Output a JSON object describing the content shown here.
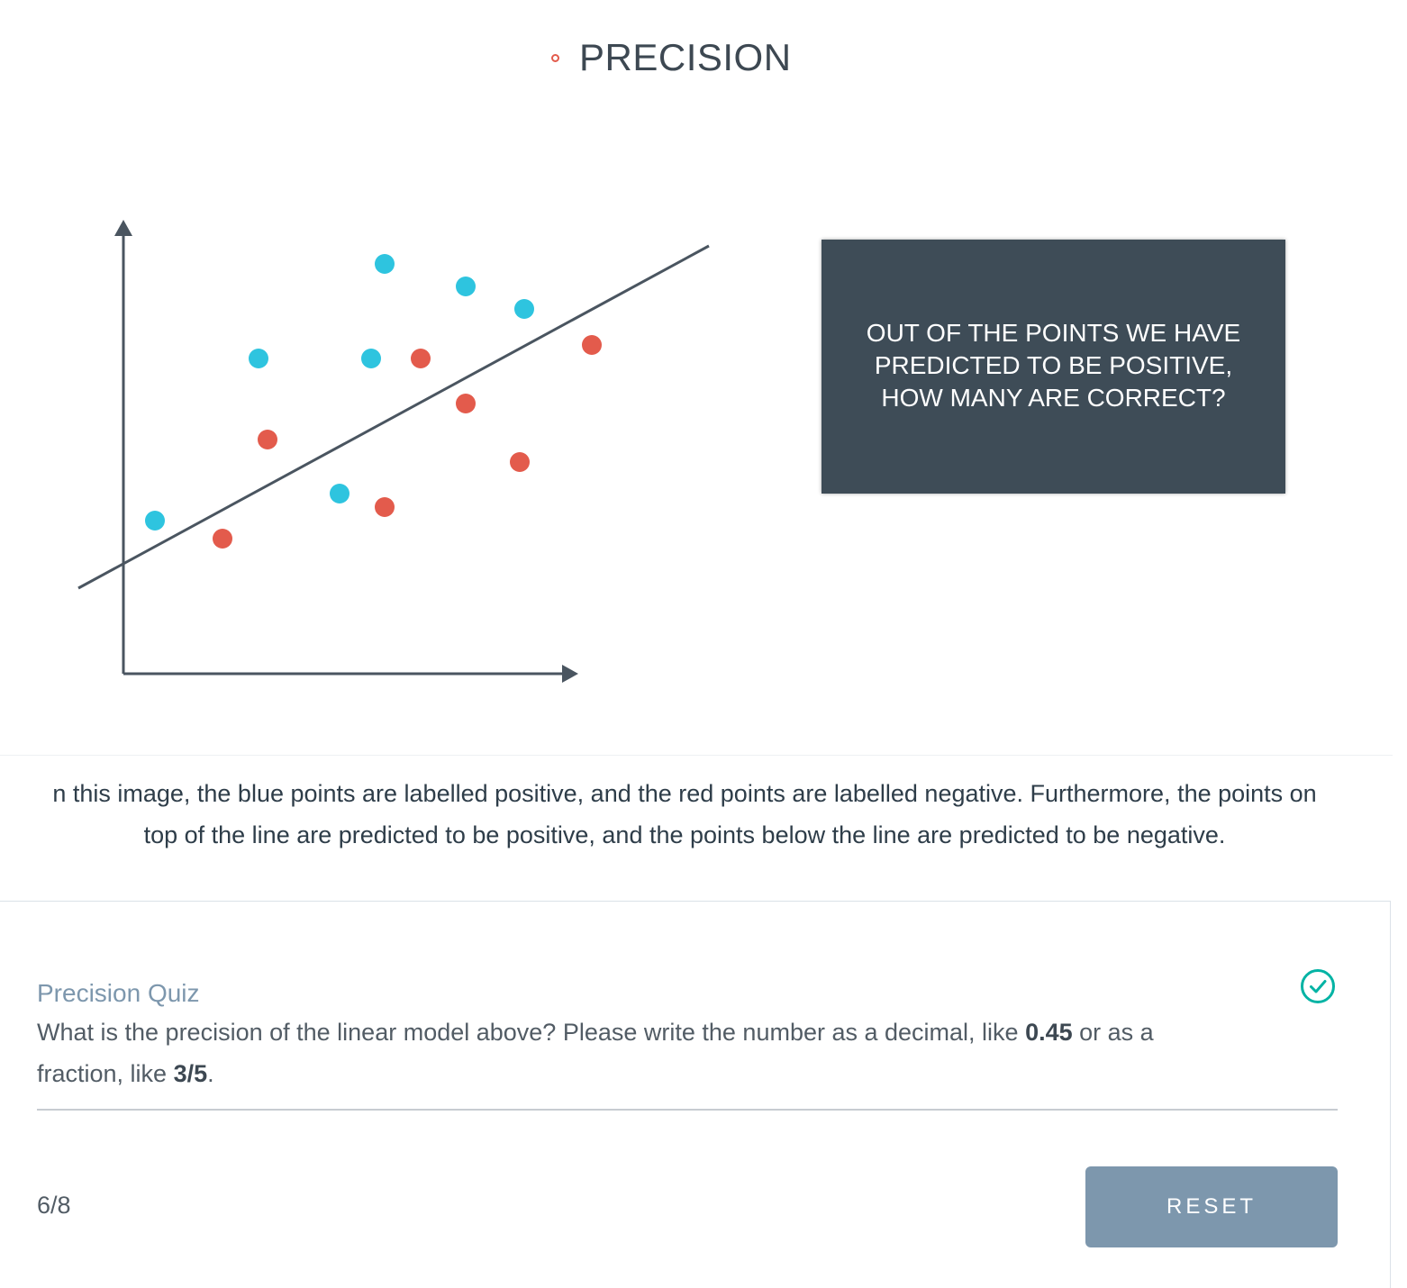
{
  "figure": {
    "title": "PRECISION",
    "callout": "OUT OF THE POINTS WE HAVE PREDICTED TO BE POSITIVE, HOW MANY ARE CORRECT?",
    "colors": {
      "positive": "#2ec4df",
      "negative": "#e35b4c",
      "axis": "#4a5560",
      "callout_bg": "#3e4c57"
    },
    "points": [
      {
        "label": "positive",
        "x": 0.07,
        "y": 0.34
      },
      {
        "label": "negative",
        "x": 0.22,
        "y": 0.3
      },
      {
        "label": "positive",
        "x": 0.3,
        "y": 0.7
      },
      {
        "label": "negative",
        "x": 0.32,
        "y": 0.52
      },
      {
        "label": "positive",
        "x": 0.48,
        "y": 0.4
      },
      {
        "label": "negative",
        "x": 0.58,
        "y": 0.37
      },
      {
        "label": "positive",
        "x": 0.55,
        "y": 0.7
      },
      {
        "label": "positive",
        "x": 0.58,
        "y": 0.91
      },
      {
        "label": "negative",
        "x": 0.66,
        "y": 0.7
      },
      {
        "label": "positive",
        "x": 0.76,
        "y": 0.86
      },
      {
        "label": "negative",
        "x": 0.76,
        "y": 0.6
      },
      {
        "label": "negative",
        "x": 0.88,
        "y": 0.47
      },
      {
        "label": "positive",
        "x": 0.89,
        "y": 0.81
      },
      {
        "label": "negative",
        "x": 1.04,
        "y": 0.73
      }
    ],
    "line": {
      "x1": -0.1,
      "y1": 0.19,
      "x2": 1.3,
      "y2": 0.95
    }
  },
  "caption": {
    "line1": "n this image, the blue points are labelled positive, and the red points are labelled negative. Furthermore, the points on",
    "line2": "top of the line are predicted to be positive, and the points below the line are predicted to be negative."
  },
  "quiz": {
    "label": "Precision Quiz",
    "question_pre": "What is the precision of the linear model above? Please write the number as a decimal, like ",
    "example_decimal": "0.45",
    "question_mid": " or as a",
    "question_line2_pre": "fraction, like ",
    "example_fraction": "3/5",
    "question_end": ".",
    "answer_value": "",
    "score": "6/8",
    "reset_label": "RESET",
    "status_icon": "check-circle-icon",
    "status_color": "#02b3a4"
  }
}
